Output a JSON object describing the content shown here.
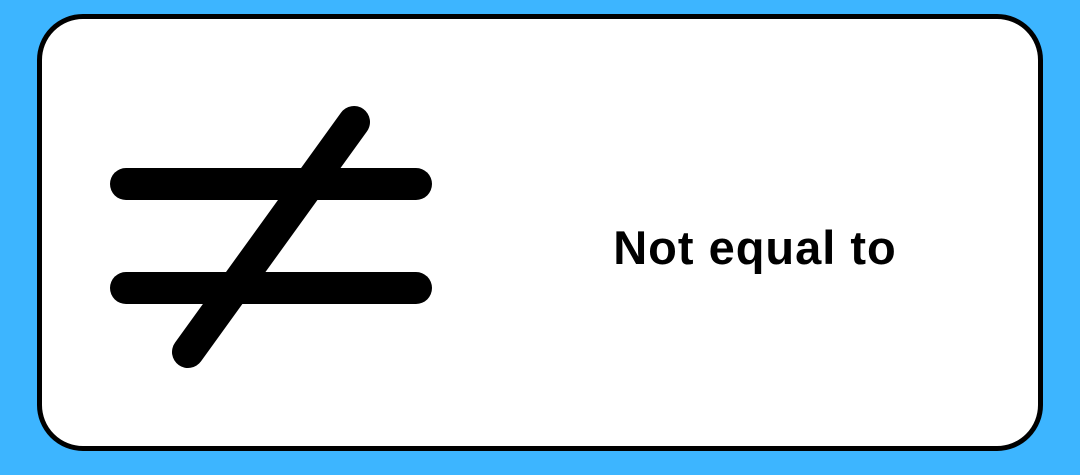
{
  "colors": {
    "background": "#3db5ff",
    "card_background": "#ffffff",
    "card_border": "#000000",
    "symbol": "#000000",
    "text": "#000000"
  },
  "symbol": {
    "icon": "not-equal-icon"
  },
  "label": "Not equal to"
}
